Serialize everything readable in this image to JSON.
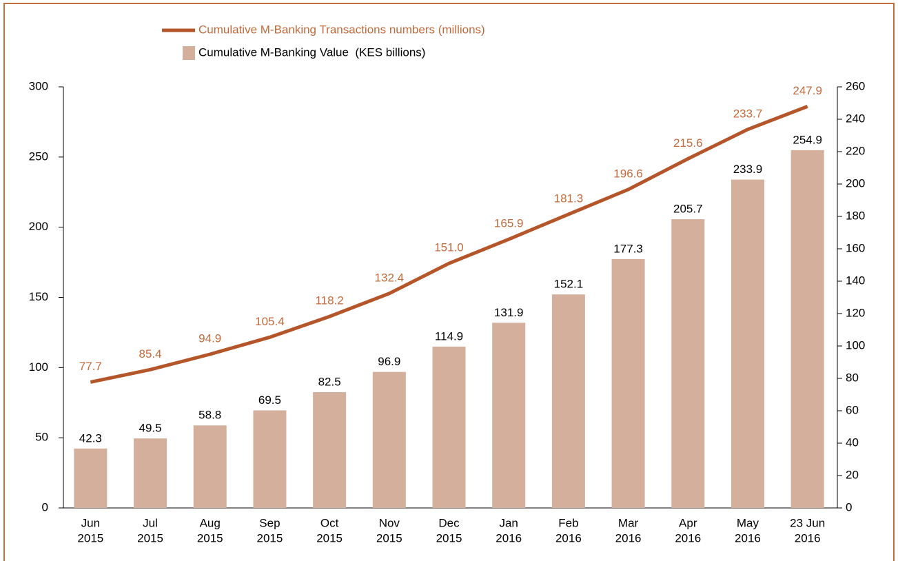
{
  "chart_data": {
    "type": "bar-line",
    "categories": [
      [
        "Jun",
        "2015"
      ],
      [
        "Jul",
        "2015"
      ],
      [
        "Aug",
        "2015"
      ],
      [
        "Sep",
        "2015"
      ],
      [
        "Oct",
        "2015"
      ],
      [
        "Nov",
        "2015"
      ],
      [
        "Dec",
        "2015"
      ],
      [
        "Jan",
        "2016"
      ],
      [
        "Feb",
        "2016"
      ],
      [
        "Mar",
        "2016"
      ],
      [
        "Apr",
        "2016"
      ],
      [
        "May",
        "2016"
      ],
      [
        "23 Jun",
        "2016"
      ]
    ],
    "series": [
      {
        "name": "Cumulative M-Banking Transactions numbers (millions)",
        "type": "line",
        "axis": "y2",
        "color": "#b5562a",
        "label_color": "#c26a3c",
        "values": [
          77.7,
          85.4,
          94.9,
          105.4,
          118.2,
          132.4,
          151.0,
          165.9,
          181.3,
          196.6,
          215.6,
          233.7,
          247.9
        ],
        "value_labels": [
          "77.7",
          "85.4",
          "94.9",
          "105.4",
          "118.2",
          "132.4",
          "151.0",
          "165.9",
          "181.3",
          "196.6",
          "215.6",
          "233.7",
          "247.9"
        ]
      },
      {
        "name": "Cumulative M-Banking Value  (KES billions)",
        "type": "bar",
        "axis": "y",
        "color": "#d4af9b",
        "values": [
          42.3,
          49.5,
          58.8,
          69.5,
          82.5,
          96.9,
          114.9,
          131.9,
          152.1,
          177.3,
          205.7,
          233.9,
          254.9
        ]
      }
    ],
    "ylim": [
      0,
      300
    ],
    "yticks": [
      0,
      50,
      100,
      150,
      200,
      250,
      300
    ],
    "y2lim": [
      0,
      260
    ],
    "y2ticks": [
      0,
      20,
      40,
      60,
      80,
      100,
      120,
      140,
      160,
      180,
      200,
      220,
      240,
      260
    ],
    "legend": "top-left"
  }
}
